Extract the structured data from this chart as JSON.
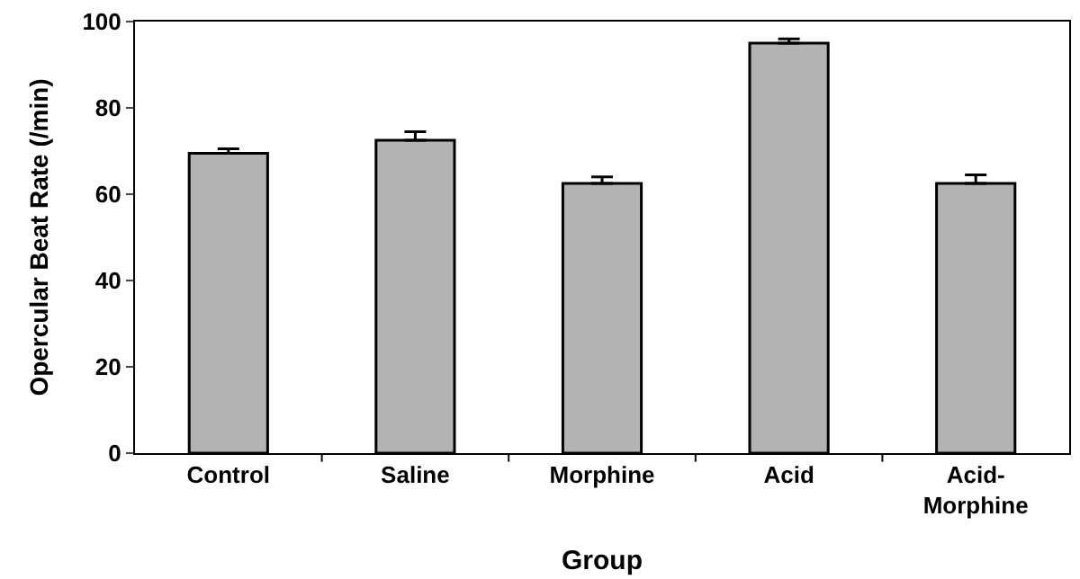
{
  "chart_data": {
    "type": "bar",
    "xlabel": "Group",
    "ylabel": "Opercular Beat Rate (/min)",
    "categories": [
      "Control",
      "Saline",
      "Morphine",
      "Acid",
      "Acid-\nMorphine"
    ],
    "values": [
      69.5,
      72.5,
      62.5,
      95,
      62.5
    ],
    "errors": [
      [
        69.5,
        70.5
      ],
      [
        72.5,
        74.5
      ],
      [
        62.5,
        64
      ],
      [
        95,
        96
      ],
      [
        62.5,
        64.5
      ]
    ],
    "color": "#b3b3b3",
    "ylim": [
      0,
      100
    ],
    "yticks": [
      0,
      20,
      40,
      60,
      80,
      100
    ]
  }
}
